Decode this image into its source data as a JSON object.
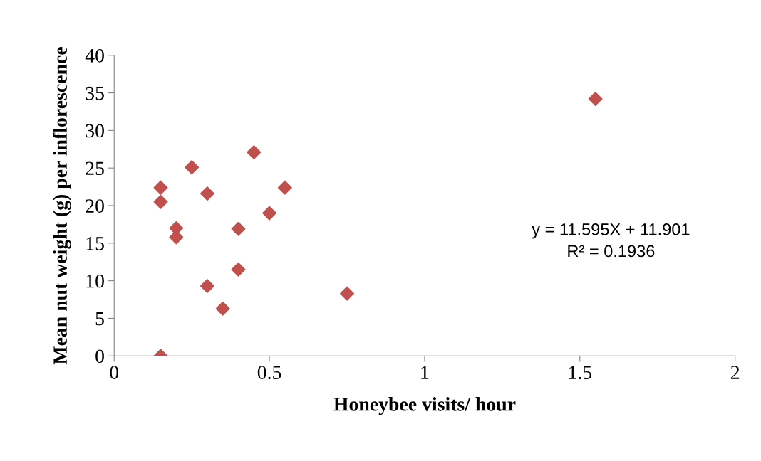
{
  "chart_data": {
    "type": "scatter",
    "xlabel": "Honeybee visits/ hour",
    "ylabel": "Mean nut weight (g) per inflorescence",
    "x": [
      0.15,
      0.15,
      0.15,
      0.2,
      0.2,
      0.25,
      0.3,
      0.3,
      0.35,
      0.4,
      0.4,
      0.45,
      0.5,
      0.55,
      0.75,
      1.55
    ],
    "series": [
      {
        "color": "#c0504d",
        "values": [
          0,
          22.4,
          20.5,
          17.0,
          15.8,
          25.1,
          21.6,
          9.3,
          6.3,
          16.9,
          11.5,
          27.1,
          19.0,
          22.4,
          8.3,
          34.2
        ]
      }
    ],
    "marker": "diamond",
    "grid": false,
    "legend": false,
    "xlim": [
      0,
      2
    ],
    "xticks": [
      0,
      0.5,
      1,
      1.5,
      2
    ],
    "ylim": [
      0,
      40
    ],
    "yticks": [
      0,
      5,
      10,
      15,
      20,
      25,
      30,
      35,
      40
    ],
    "annotations": [
      "y = 11.595X + 11.901\nR² = 0.1936"
    ]
  }
}
